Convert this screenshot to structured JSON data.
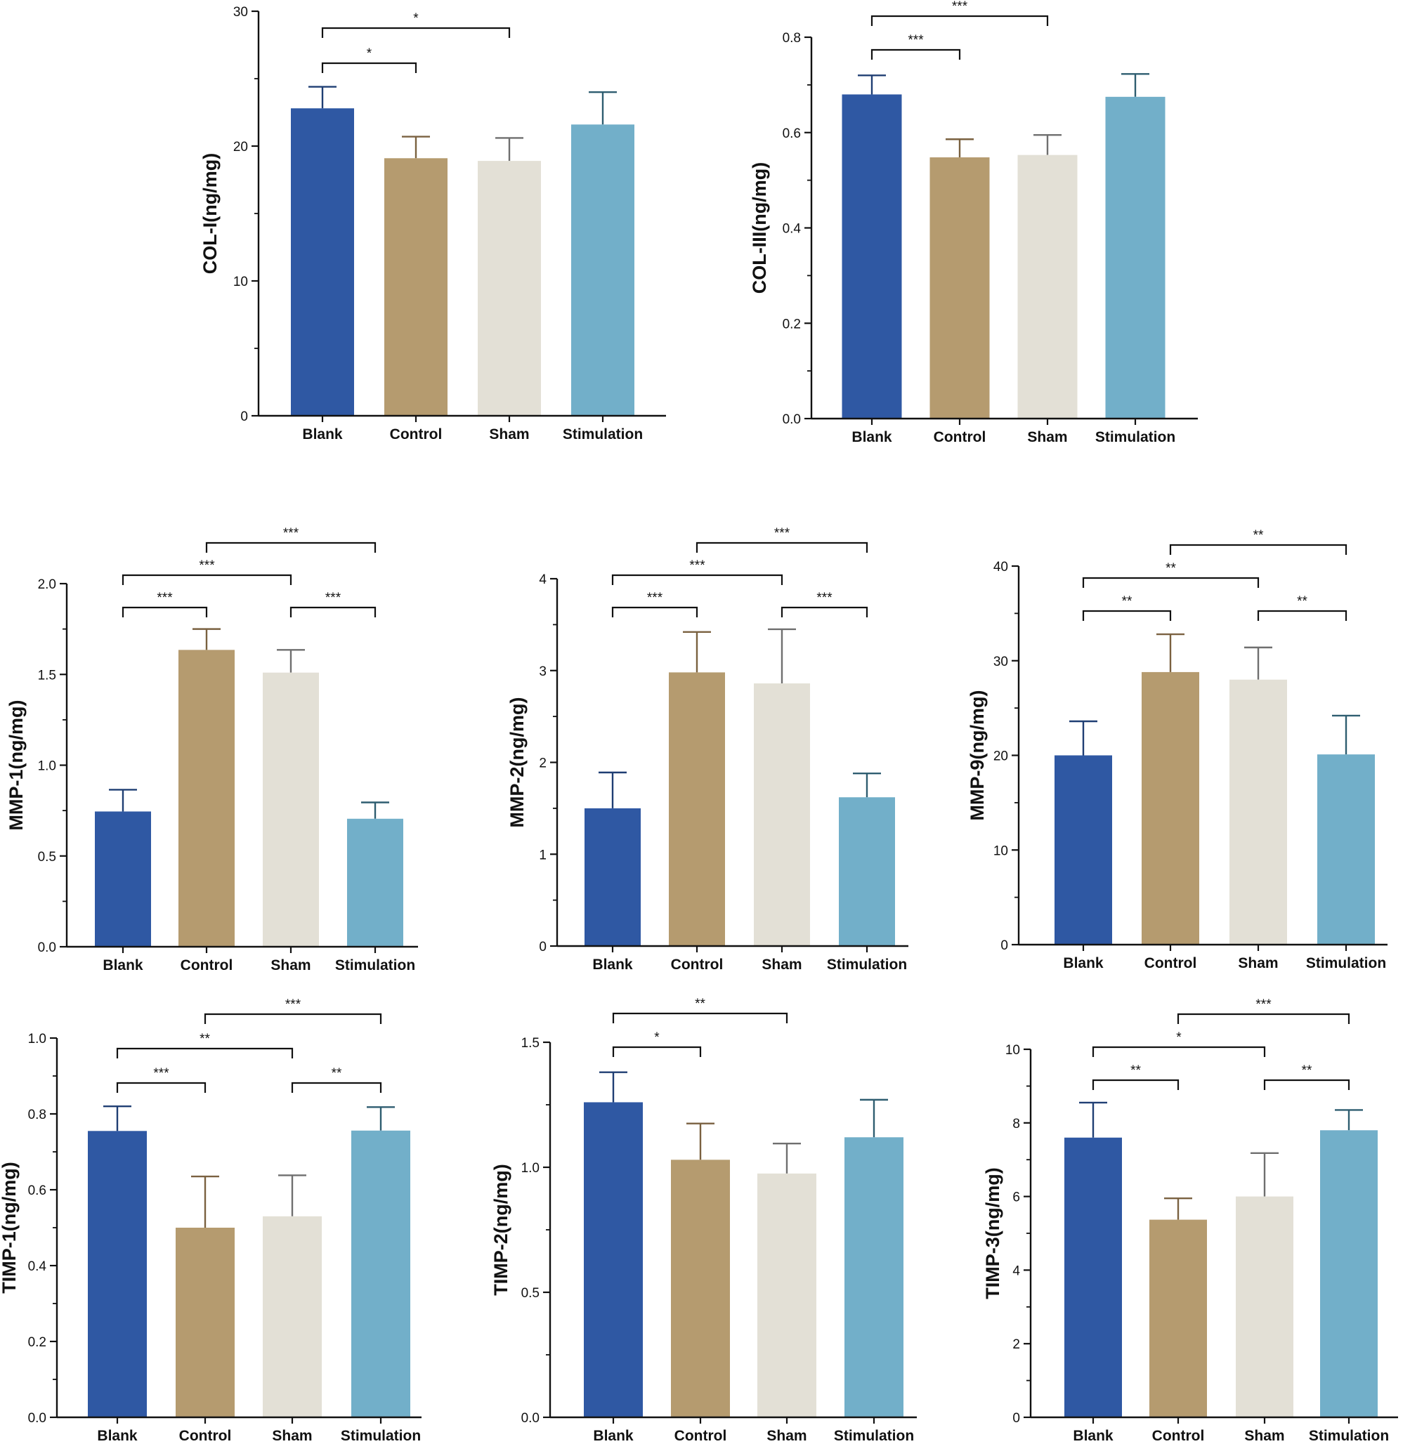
{
  "colors": {
    "bars": [
      "#2f58a3",
      "#b59b6f",
      "#e3e0d6",
      "#72afc9"
    ],
    "error": [
      "#1f3e73",
      "#7a6140",
      "#6f6f6f",
      "#2e5d70"
    ],
    "axis": "#111111"
  },
  "chart_data": [
    {
      "type": "bar",
      "ylabel": "COL-I(ng/mg)",
      "categories": [
        "Blank",
        "Control",
        "Sham",
        "Stimulation"
      ],
      "values": [
        22.8,
        19.1,
        18.9,
        21.6
      ],
      "errors": [
        1.6,
        1.6,
        1.7,
        2.4
      ],
      "ylim": [
        0,
        30
      ],
      "ticks": [
        0,
        10,
        20,
        30
      ],
      "tick_labels": [
        "0",
        "10",
        "20",
        "30"
      ],
      "significance": [
        {
          "from": 0,
          "to": 1,
          "label": "*",
          "level": 0
        },
        {
          "from": 0,
          "to": 2,
          "label": "*",
          "level": 1
        }
      ]
    },
    {
      "type": "bar",
      "ylabel": "COL-III(ng/mg)",
      "categories": [
        "Blank",
        "Control",
        "Sham",
        "Stimulation"
      ],
      "values": [
        0.68,
        0.548,
        0.553,
        0.675
      ],
      "errors": [
        0.04,
        0.038,
        0.042,
        0.048
      ],
      "ylim": [
        0,
        0.8
      ],
      "ticks": [
        0,
        0.2,
        0.4,
        0.6,
        0.8
      ],
      "tick_labels": [
        "0.0",
        "0.2",
        "0.4",
        "0.6",
        "0.8"
      ],
      "significance": [
        {
          "from": 0,
          "to": 1,
          "label": "***",
          "level": 0
        },
        {
          "from": 0,
          "to": 2,
          "label": "***",
          "level": 1
        }
      ]
    },
    {
      "type": "bar",
      "ylabel": "MMP-1(ng/mg)",
      "categories": [
        "Blank",
        "Control",
        "Sham",
        "Stimulation"
      ],
      "values": [
        0.745,
        1.635,
        1.51,
        0.705
      ],
      "errors": [
        0.12,
        0.115,
        0.125,
        0.09
      ],
      "ylim": [
        0,
        2.0
      ],
      "ticks": [
        0,
        0.5,
        1.0,
        1.5,
        2.0
      ],
      "tick_labels": [
        "0.0",
        "0.5",
        "1.0",
        "1.5",
        "2.0"
      ],
      "significance": [
        {
          "from": 0,
          "to": 1,
          "label": "***",
          "level": 0
        },
        {
          "from": 2,
          "to": 3,
          "label": "***",
          "level": 0
        },
        {
          "from": 0,
          "to": 2,
          "label": "***",
          "level": 1
        },
        {
          "from": 1,
          "to": 3,
          "label": "***",
          "level": 2
        }
      ]
    },
    {
      "type": "bar",
      "ylabel": "MMP-2(ng/mg)",
      "categories": [
        "Blank",
        "Control",
        "Sham",
        "Stimulation"
      ],
      "values": [
        1.5,
        2.98,
        2.86,
        1.62
      ],
      "errors": [
        0.39,
        0.44,
        0.59,
        0.26
      ],
      "ylim": [
        0,
        4
      ],
      "ticks": [
        0,
        1,
        2,
        3,
        4
      ],
      "tick_labels": [
        "0",
        "1",
        "2",
        "3",
        "4"
      ],
      "significance": [
        {
          "from": 0,
          "to": 1,
          "label": "***",
          "level": 0
        },
        {
          "from": 2,
          "to": 3,
          "label": "***",
          "level": 0
        },
        {
          "from": 0,
          "to": 2,
          "label": "***",
          "level": 1
        },
        {
          "from": 1,
          "to": 3,
          "label": "***",
          "level": 2
        }
      ]
    },
    {
      "type": "bar",
      "ylabel": "MMP-9(ng/mg)",
      "categories": [
        "Blank",
        "Control",
        "Sham",
        "Stimulation"
      ],
      "values": [
        20.0,
        28.8,
        28.0,
        20.1
      ],
      "errors": [
        3.6,
        4.0,
        3.4,
        4.1
      ],
      "ylim": [
        0,
        40
      ],
      "ticks": [
        0,
        10,
        20,
        30,
        40
      ],
      "tick_labels": [
        "0",
        "10",
        "20",
        "30",
        "40"
      ],
      "significance": [
        {
          "from": 0,
          "to": 1,
          "label": "**",
          "level": 0
        },
        {
          "from": 2,
          "to": 3,
          "label": "**",
          "level": 0
        },
        {
          "from": 0,
          "to": 2,
          "label": "**",
          "level": 1
        },
        {
          "from": 1,
          "to": 3,
          "label": "**",
          "level": 2
        }
      ]
    },
    {
      "type": "bar",
      "ylabel": "TIMP-1(ng/mg)",
      "categories": [
        "Blank",
        "Control",
        "Sham",
        "Stimulation"
      ],
      "values": [
        0.755,
        0.5,
        0.53,
        0.756
      ],
      "errors": [
        0.065,
        0.135,
        0.108,
        0.062
      ],
      "ylim": [
        0,
        1.0
      ],
      "ticks": [
        0,
        0.2,
        0.4,
        0.6,
        0.8,
        1.0
      ],
      "tick_labels": [
        "0.0",
        "0.2",
        "0.4",
        "0.6",
        "0.8",
        "1.0"
      ],
      "significance": [
        {
          "from": 0,
          "to": 1,
          "label": "***",
          "level": 0
        },
        {
          "from": 2,
          "to": 3,
          "label": "**",
          "level": 0
        },
        {
          "from": 0,
          "to": 2,
          "label": "**",
          "level": 1
        },
        {
          "from": 1,
          "to": 3,
          "label": "***",
          "level": 2
        }
      ]
    },
    {
      "type": "bar",
      "ylabel": "TIMP-2(ng/mg)",
      "categories": [
        "Blank",
        "Control",
        "Sham",
        "Stimulation"
      ],
      "values": [
        1.26,
        1.03,
        0.975,
        1.12
      ],
      "errors": [
        0.12,
        0.145,
        0.12,
        0.15
      ],
      "ylim": [
        0,
        1.5
      ],
      "ticks": [
        0,
        0.5,
        1.0,
        1.5
      ],
      "tick_labels": [
        "0.0",
        "0.5",
        "1.0",
        "1.5"
      ],
      "significance": [
        {
          "from": 0,
          "to": 1,
          "label": "*",
          "level": 0
        },
        {
          "from": 0,
          "to": 2,
          "label": "**",
          "level": 1
        }
      ]
    },
    {
      "type": "bar",
      "ylabel": "TIMP-3(ng/mg)",
      "categories": [
        "Blank",
        "Control",
        "Sham",
        "Stimulation"
      ],
      "values": [
        7.6,
        5.37,
        6.0,
        7.8
      ],
      "errors": [
        0.95,
        0.58,
        1.18,
        0.55
      ],
      "ylim": [
        0,
        10
      ],
      "ticks": [
        0,
        2,
        4,
        6,
        8,
        10
      ],
      "tick_labels": [
        "0",
        "2",
        "4",
        "6",
        "8",
        "10"
      ],
      "significance": [
        {
          "from": 0,
          "to": 1,
          "label": "**",
          "level": 0
        },
        {
          "from": 2,
          "to": 3,
          "label": "**",
          "level": 0
        },
        {
          "from": 0,
          "to": 2,
          "label": "*",
          "level": 1
        },
        {
          "from": 1,
          "to": 3,
          "label": "***",
          "level": 2
        }
      ]
    }
  ]
}
